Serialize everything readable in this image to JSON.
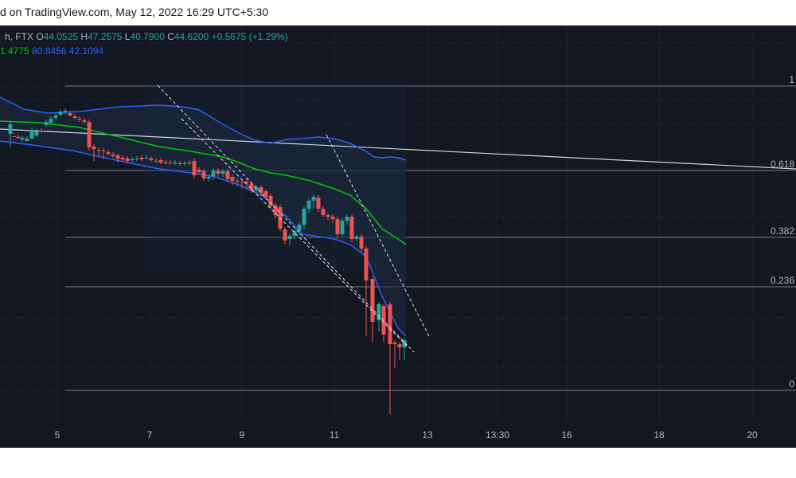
{
  "header": {
    "watermark": "d on TradingView.com, May 12, 2022 16:29 UTC+5:30"
  },
  "legend": {
    "symbol": "h, FTX",
    "ohlc": [
      {
        "k": "O",
        "v": "44.0525"
      },
      {
        "k": "H",
        "v": "47.2575"
      },
      {
        "k": "L",
        "v": "40.7900"
      },
      {
        "k": "C",
        "v": "44.6200"
      }
    ],
    "change": "+0.5675 (+1.29%)",
    "ind_values": [
      "1.4775",
      "80.8456",
      "42.1094"
    ]
  },
  "colors": {
    "bg": "#131722",
    "grid": "#1e222d",
    "up": "#26a69a",
    "down": "#ef5350",
    "bb": "#2962ff",
    "ma": "#00c805",
    "fib": "#787b86",
    "text": "#b2b5be",
    "trend": "#d1d4dc",
    "fill": "#1c2a40"
  },
  "chart_data": {
    "type": "candlestick",
    "x_tick_labels": [
      "5",
      "7",
      "9",
      "11",
      "13",
      "13:30",
      "16",
      "18",
      "20"
    ],
    "fib_levels": [
      {
        "label": "1"
      },
      {
        "label": "0.618"
      },
      {
        "label": "0.382"
      },
      {
        "label": "0.236"
      },
      {
        "label": "0"
      }
    ],
    "candles": [
      [
        13,
        136,
        124,
        153
      ],
      [
        18,
        139,
        139,
        135
      ],
      [
        23,
        140,
        140,
        143
      ],
      [
        28,
        143,
        141,
        146
      ],
      [
        34,
        145,
        142,
        144
      ],
      [
        40,
        142,
        131,
        143
      ],
      [
        46,
        138,
        133,
        140
      ],
      [
        52,
        132,
        133,
        135
      ],
      [
        58,
        125,
        121,
        127
      ],
      [
        64,
        122,
        117,
        125
      ],
      [
        70,
        116,
        113,
        120
      ],
      [
        76,
        112,
        108,
        114
      ],
      [
        82,
        109,
        107,
        112
      ],
      [
        88,
        110,
        113,
        114
      ],
      [
        94,
        114,
        116,
        118
      ],
      [
        100,
        117,
        117,
        121
      ],
      [
        106,
        119,
        121,
        124
      ],
      [
        112,
        121,
        153,
        157
      ],
      [
        118,
        152,
        155,
        170
      ],
      [
        124,
        156,
        157,
        165
      ],
      [
        130,
        157,
        158,
        168
      ],
      [
        136,
        159,
        161,
        163
      ],
      [
        142,
        162,
        164,
        166
      ],
      [
        148,
        163,
        167,
        172
      ],
      [
        154,
        166,
        168,
        170
      ],
      [
        160,
        167,
        170,
        173
      ],
      [
        166,
        169,
        168,
        172
      ],
      [
        172,
        168,
        167,
        170
      ],
      [
        178,
        166,
        168,
        170
      ],
      [
        184,
        167,
        166,
        168
      ],
      [
        190,
        167,
        169,
        171
      ],
      [
        196,
        170,
        170,
        172
      ],
      [
        202,
        169,
        172,
        174
      ],
      [
        208,
        172,
        172,
        174
      ],
      [
        214,
        172,
        172,
        174
      ],
      [
        220,
        173,
        172,
        175
      ],
      [
        226,
        173,
        174,
        176
      ],
      [
        232,
        174,
        173,
        176
      ],
      [
        238,
        172,
        173,
        175
      ],
      [
        244,
        170,
        188,
        192
      ],
      [
        250,
        181,
        184,
        186
      ],
      [
        256,
        183,
        192,
        195
      ],
      [
        262,
        192,
        190,
        196
      ],
      [
        268,
        189,
        182,
        194
      ],
      [
        274,
        182,
        186,
        190
      ],
      [
        280,
        186,
        183,
        190
      ],
      [
        286,
        183,
        193,
        197
      ],
      [
        292,
        190,
        195,
        200
      ],
      [
        298,
        195,
        195,
        202
      ],
      [
        304,
        196,
        197,
        204
      ],
      [
        310,
        196,
        198,
        204
      ],
      [
        316,
        199,
        207,
        210
      ],
      [
        322,
        207,
        203,
        210
      ],
      [
        328,
        203,
        210,
        214
      ],
      [
        334,
        208,
        215,
        218
      ],
      [
        340,
        214,
        227,
        230
      ],
      [
        346,
        226,
        238,
        242
      ],
      [
        352,
        228,
        255,
        258
      ],
      [
        358,
        256,
        270,
        275
      ],
      [
        364,
        268,
        264,
        276
      ],
      [
        370,
        264,
        258,
        268
      ],
      [
        376,
        258,
        250,
        264
      ],
      [
        382,
        250,
        230,
        256
      ],
      [
        388,
        230,
        220,
        235
      ],
      [
        394,
        220,
        215,
        230
      ],
      [
        400,
        216,
        230,
        234
      ],
      [
        406,
        230,
        238,
        240
      ],
      [
        412,
        238,
        240,
        244
      ],
      [
        418,
        240,
        243,
        248
      ],
      [
        424,
        243,
        262,
        268
      ],
      [
        430,
        262,
        245,
        265
      ],
      [
        436,
        245,
        240,
        250
      ],
      [
        442,
        240,
        268,
        272
      ],
      [
        448,
        268,
        265,
        270
      ],
      [
        454,
        265,
        280,
        284
      ],
      [
        460,
        280,
        320,
        390
      ],
      [
        468,
        318,
        372,
        398
      ],
      [
        476,
        370,
        350,
        384
      ],
      [
        482,
        352,
        388,
        398
      ],
      [
        490,
        350,
        400,
        488
      ],
      [
        496,
        398,
        400,
        430
      ],
      [
        502,
        400,
        404,
        420
      ],
      [
        508,
        404,
        395,
        420
      ]
    ],
    "bb_upper": [
      [
        0,
        90
      ],
      [
        30,
        105
      ],
      [
        60,
        110
      ],
      [
        100,
        108
      ],
      [
        150,
        102
      ],
      [
        200,
        100
      ],
      [
        230,
        102
      ],
      [
        250,
        106
      ],
      [
        260,
        112
      ],
      [
        280,
        124
      ],
      [
        300,
        135
      ],
      [
        320,
        144
      ],
      [
        340,
        148
      ],
      [
        360,
        143
      ],
      [
        380,
        142
      ],
      [
        400,
        140
      ],
      [
        420,
        142
      ],
      [
        440,
        148
      ],
      [
        460,
        158
      ],
      [
        470,
        165
      ],
      [
        480,
        166
      ],
      [
        490,
        165
      ],
      [
        500,
        166
      ],
      [
        510,
        169
      ]
    ],
    "bb_lower": [
      [
        0,
        145
      ],
      [
        40,
        150
      ],
      [
        90,
        157
      ],
      [
        150,
        170
      ],
      [
        200,
        180
      ],
      [
        240,
        185
      ],
      [
        270,
        190
      ],
      [
        300,
        200
      ],
      [
        330,
        214
      ],
      [
        360,
        240
      ],
      [
        380,
        262
      ],
      [
        400,
        265
      ],
      [
        420,
        268
      ],
      [
        440,
        275
      ],
      [
        460,
        290
      ],
      [
        480,
        340
      ],
      [
        500,
        380
      ],
      [
        510,
        390
      ]
    ],
    "ma": [
      [
        0,
        120
      ],
      [
        50,
        122
      ],
      [
        100,
        128
      ],
      [
        150,
        140
      ],
      [
        200,
        152
      ],
      [
        240,
        158
      ],
      [
        280,
        165
      ],
      [
        300,
        172
      ],
      [
        320,
        180
      ],
      [
        340,
        185
      ],
      [
        360,
        188
      ],
      [
        390,
        195
      ],
      [
        420,
        205
      ],
      [
        440,
        213
      ],
      [
        460,
        230
      ],
      [
        480,
        255
      ],
      [
        500,
        268
      ],
      [
        510,
        275
      ]
    ],
    "trendline": [
      [
        0,
        130
      ],
      [
        1000,
        180
      ]
    ],
    "channel_lines": [
      [
        [
          198,
          75
        ],
        [
          520,
          410
        ]
      ],
      [
        [
          228,
          117
        ],
        [
          511,
          402
        ]
      ],
      [
        [
          410,
          137
        ],
        [
          540,
          392
        ]
      ]
    ],
    "bb_fill_top": [
      [
        0,
        90
      ],
      [
        30,
        105
      ],
      [
        60,
        110
      ],
      [
        100,
        108
      ],
      [
        150,
        102
      ],
      [
        200,
        100
      ],
      [
        230,
        102
      ],
      [
        250,
        106
      ],
      [
        260,
        112
      ],
      [
        280,
        124
      ],
      [
        300,
        135
      ],
      [
        320,
        144
      ],
      [
        340,
        148
      ],
      [
        360,
        143
      ],
      [
        380,
        142
      ],
      [
        400,
        140
      ],
      [
        420,
        142
      ],
      [
        440,
        148
      ],
      [
        460,
        158
      ],
      [
        470,
        165
      ],
      [
        480,
        166
      ],
      [
        490,
        165
      ],
      [
        500,
        166
      ],
      [
        510,
        169
      ]
    ]
  }
}
